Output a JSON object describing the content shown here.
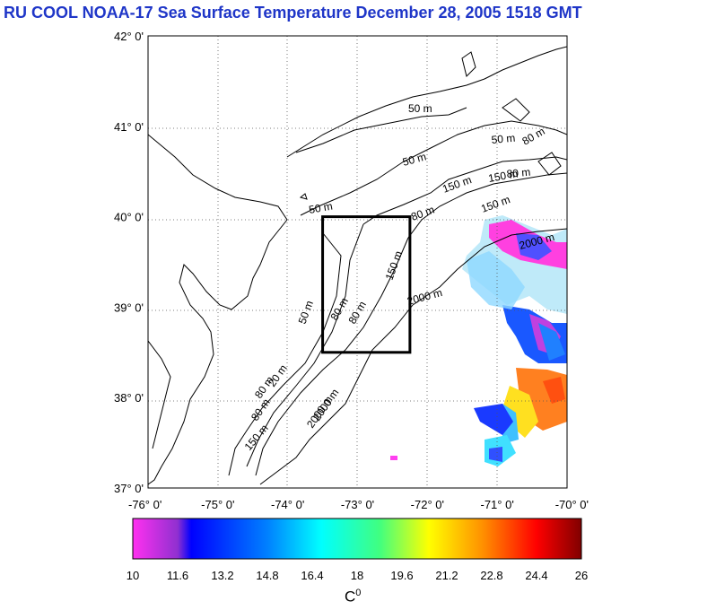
{
  "title": "RU COOL  NOAA-17 Sea Surface Temperature December 28, 2005 1518 GMT",
  "latitude_labels": [
    "42° 0'",
    "41° 0'",
    "40° 0'",
    "39° 0'",
    "38° 0'",
    "37° 0'"
  ],
  "longitude_labels": [
    "-76° 0'",
    "-75° 0'",
    "-74° 0'",
    "-73° 0'",
    "-72° 0'",
    "-71° 0'",
    "-70° 0'"
  ],
  "contour_labels": [
    "50 m",
    "50 m",
    "50 m",
    "50 m",
    "80 m",
    "150 m",
    "80 m",
    "80 m",
    "150 m",
    "2000 m",
    "150 m",
    "2000 m",
    "50 m",
    "80 m",
    "80 m",
    "150 m",
    "2000 m",
    "80 m",
    "20 m",
    "80 m",
    "150 m",
    "2000 m"
  ],
  "colorbar": {
    "ticks": [
      "10",
      "11.6",
      "13.2",
      "14.8",
      "16.4",
      "18",
      "19.6",
      "21.2",
      "22.8",
      "24.4",
      "26"
    ],
    "unit_base": "C",
    "unit_sup": "0",
    "colors": [
      "#ff30f0",
      "#9030d0",
      "#0000ff",
      "#0080ff",
      "#00ffff",
      "#40ff80",
      "#ffff00",
      "#ff9000",
      "#ff0000",
      "#900000"
    ]
  },
  "study_box": {
    "lon_min": -73.5,
    "lon_max": -72.25,
    "lat_min": 38.5,
    "lat_max": 40.0
  }
}
